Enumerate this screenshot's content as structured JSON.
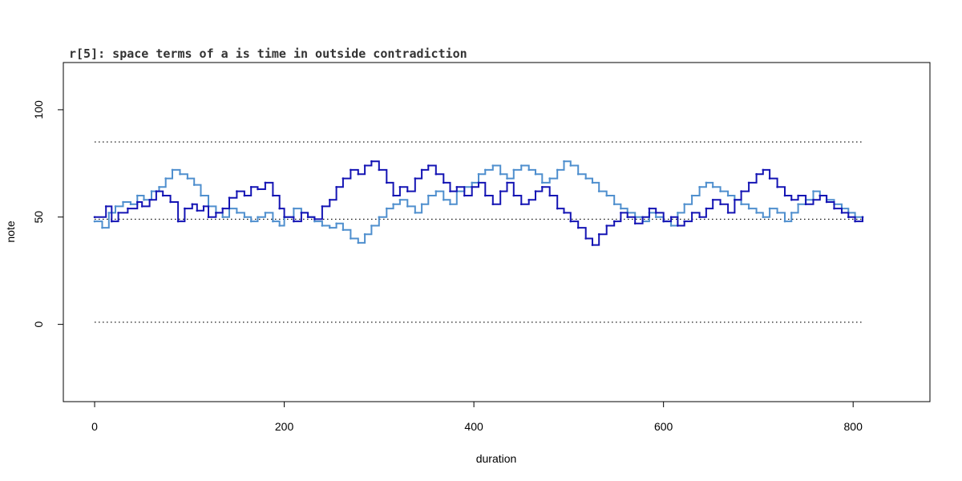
{
  "chart_data": {
    "type": "line",
    "title": "r[5]: space terms of a is time in outside contradiction",
    "xlabel": "duration",
    "ylabel": "note",
    "xlim": [
      -33,
      881
    ],
    "ylim": [
      -36,
      122
    ],
    "x_ticks": [
      0,
      200,
      400,
      600,
      800
    ],
    "x_tick_labels": [
      "0",
      "200",
      "400",
      "600",
      "800"
    ],
    "y_ticks": [
      0,
      50,
      100
    ],
    "y_tick_labels": [
      "0",
      "50",
      "100"
    ],
    "reference_lines": [
      1,
      49,
      85
    ],
    "grid": false,
    "series": [
      {
        "color": "#1414b4",
        "x": [
          0,
          12,
          18,
          25,
          35,
          45,
          50,
          58,
          65,
          72,
          80,
          88,
          95,
          103,
          108,
          115,
          120,
          128,
          135,
          142,
          150,
          158,
          165,
          172,
          180,
          188,
          195,
          200,
          210,
          218,
          225,
          232,
          240,
          248,
          255,
          262,
          270,
          278,
          285,
          292,
          300,
          308,
          315,
          322,
          330,
          338,
          345,
          352,
          360,
          368,
          375,
          382,
          390,
          398,
          405,
          412,
          420,
          428,
          435,
          442,
          450,
          458,
          465,
          472,
          480,
          488,
          495,
          502,
          510,
          518,
          525,
          532,
          540,
          548,
          555,
          562,
          570,
          578,
          585,
          592,
          600,
          608,
          615,
          622,
          630,
          638,
          645,
          652,
          660,
          668,
          675,
          682,
          690,
          698,
          705,
          712,
          720,
          728,
          735,
          742,
          750,
          758,
          765,
          772,
          780,
          788,
          795,
          802,
          810
        ],
        "y": [
          50,
          55,
          48,
          52,
          54,
          57,
          55,
          58,
          62,
          60,
          57,
          48,
          54,
          56,
          53,
          55,
          50,
          52,
          54,
          59,
          62,
          60,
          64,
          63,
          66,
          60,
          54,
          50,
          48,
          52,
          50,
          49,
          55,
          58,
          64,
          68,
          72,
          70,
          74,
          76,
          72,
          66,
          60,
          64,
          62,
          68,
          72,
          74,
          70,
          66,
          62,
          64,
          60,
          64,
          66,
          60,
          56,
          62,
          66,
          60,
          56,
          58,
          62,
          64,
          60,
          54,
          52,
          48,
          45,
          40,
          37,
          42,
          46,
          48,
          52,
          50,
          47,
          50,
          54,
          52,
          48,
          50,
          46,
          48,
          52,
          50,
          54,
          58,
          56,
          52,
          58,
          62,
          66,
          70,
          72,
          68,
          64,
          60,
          58,
          60,
          56,
          58,
          60,
          57,
          54,
          52,
          50,
          48,
          50
        ]
      },
      {
        "color": "#4f8fce",
        "x": [
          0,
          8,
          15,
          22,
          30,
          38,
          45,
          52,
          60,
          68,
          75,
          82,
          90,
          98,
          105,
          112,
          120,
          128,
          135,
          142,
          150,
          158,
          165,
          172,
          180,
          188,
          195,
          200,
          210,
          218,
          225,
          232,
          240,
          248,
          255,
          262,
          270,
          278,
          285,
          292,
          300,
          308,
          315,
          322,
          330,
          338,
          345,
          352,
          360,
          368,
          375,
          382,
          390,
          398,
          405,
          412,
          420,
          428,
          435,
          442,
          450,
          458,
          465,
          472,
          480,
          488,
          495,
          502,
          510,
          518,
          525,
          532,
          540,
          548,
          555,
          562,
          570,
          578,
          585,
          592,
          600,
          608,
          615,
          622,
          630,
          638,
          645,
          652,
          660,
          668,
          675,
          682,
          690,
          698,
          705,
          712,
          720,
          728,
          735,
          742,
          750,
          758,
          765,
          772,
          780,
          788,
          795,
          802,
          810
        ],
        "y": [
          48,
          45,
          52,
          55,
          57,
          56,
          60,
          58,
          62,
          64,
          68,
          72,
          70,
          68,
          65,
          60,
          55,
          52,
          50,
          54,
          52,
          50,
          48,
          50,
          52,
          48,
          46,
          50,
          54,
          52,
          50,
          48,
          46,
          45,
          47,
          44,
          40,
          38,
          42,
          46,
          50,
          54,
          56,
          58,
          55,
          52,
          56,
          60,
          62,
          58,
          56,
          62,
          64,
          66,
          70,
          72,
          74,
          70,
          68,
          72,
          74,
          72,
          70,
          66,
          68,
          72,
          76,
          74,
          70,
          68,
          66,
          62,
          60,
          56,
          54,
          52,
          50,
          48,
          52,
          50,
          48,
          46,
          52,
          56,
          60,
          64,
          66,
          64,
          62,
          60,
          58,
          56,
          54,
          52,
          50,
          54,
          52,
          48,
          52,
          56,
          58,
          62,
          60,
          58,
          56,
          54,
          52,
          50,
          50
        ]
      }
    ]
  }
}
